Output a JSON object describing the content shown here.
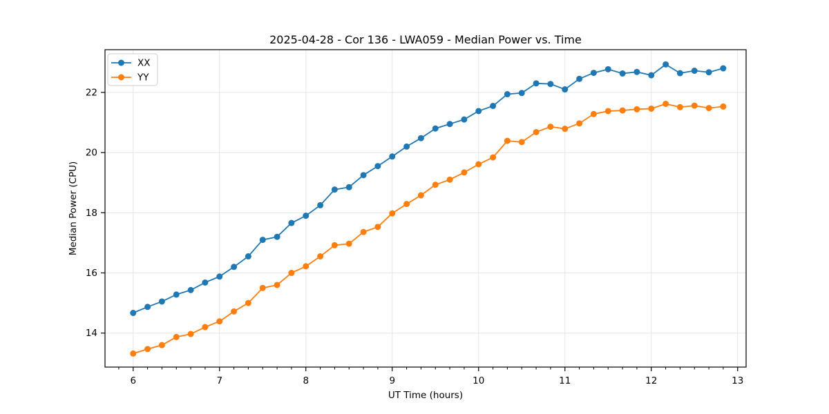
{
  "chart_data": {
    "type": "line",
    "title": "2025-04-28 - Cor 136 - LWA059 - Median Power vs. Time",
    "xlabel": "UT Time (hours)",
    "ylabel": "Median Power (CPU)",
    "xlim": [
      5.674,
      13.098
    ],
    "ylim": [
      12.87,
      23.42
    ],
    "xticks": [
      6,
      7,
      8,
      9,
      10,
      11,
      12,
      13
    ],
    "yticks": [
      14,
      16,
      18,
      20,
      22
    ],
    "x_minor_step": 0.166667,
    "grid": true,
    "grid_color": "#e5e5e5",
    "spine_color": "#000000",
    "background": "#ffffff",
    "legend_position": "upper left",
    "x": [
      6.0,
      6.167,
      6.333,
      6.5,
      6.667,
      6.833,
      7.0,
      7.167,
      7.333,
      7.5,
      7.667,
      7.833,
      8.0,
      8.167,
      8.333,
      8.5,
      8.667,
      8.833,
      9.0,
      9.167,
      9.333,
      9.5,
      9.667,
      9.833,
      10.0,
      10.167,
      10.333,
      10.5,
      10.667,
      10.833,
      11.0,
      11.167,
      11.333,
      11.5,
      11.667,
      11.833,
      12.0,
      12.167,
      12.333,
      12.5,
      12.667,
      12.833
    ],
    "series": [
      {
        "name": "XX",
        "color": "#1f77b4",
        "values": [
          14.67,
          14.87,
          15.05,
          15.28,
          15.43,
          15.68,
          15.88,
          16.2,
          16.55,
          17.1,
          17.2,
          17.66,
          17.9,
          18.25,
          18.77,
          18.85,
          19.25,
          19.55,
          19.87,
          20.2,
          20.48,
          20.8,
          20.95,
          21.1,
          21.38,
          21.55,
          21.94,
          21.98,
          22.3,
          22.28,
          22.1,
          22.45,
          22.65,
          22.77,
          22.63,
          22.68,
          22.57,
          22.93,
          22.64,
          22.72,
          22.67,
          22.8
        ]
      },
      {
        "name": "YY",
        "color": "#ff7f0e",
        "values": [
          13.32,
          13.47,
          13.6,
          13.87,
          13.97,
          14.2,
          14.39,
          14.72,
          15.0,
          15.5,
          15.6,
          16.0,
          16.22,
          16.55,
          16.92,
          16.97,
          17.36,
          17.53,
          17.98,
          18.29,
          18.58,
          18.93,
          19.1,
          19.34,
          19.61,
          19.84,
          20.39,
          20.35,
          20.68,
          20.86,
          20.79,
          20.97,
          21.28,
          21.38,
          21.4,
          21.44,
          21.46,
          21.62,
          21.51,
          21.56,
          21.48,
          21.53
        ]
      }
    ]
  }
}
